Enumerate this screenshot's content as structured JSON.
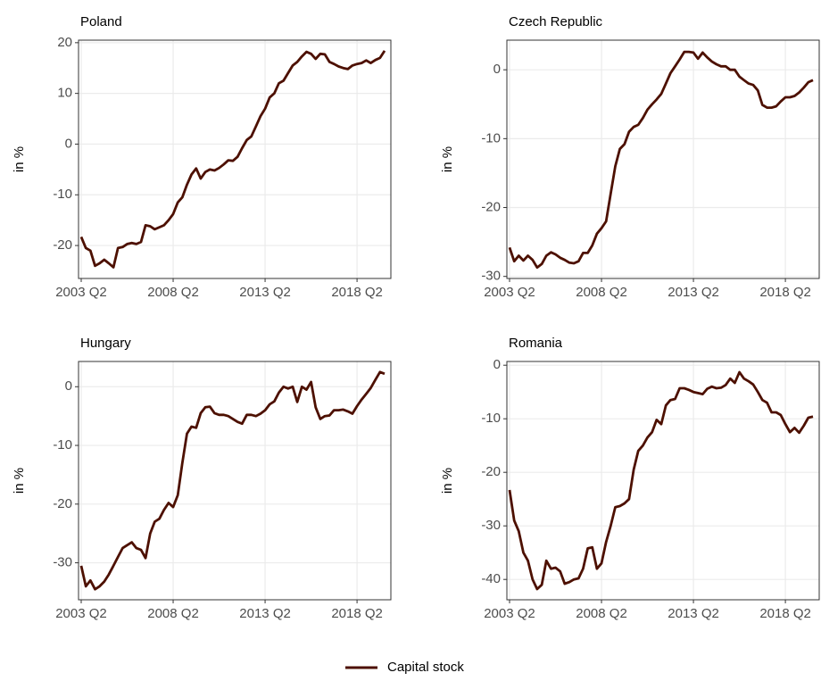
{
  "chart_data": [
    {
      "type": "line",
      "title": "Poland",
      "y_label": "in %",
      "color": "#4d1000",
      "categories": [
        "2003 Q2",
        null,
        null,
        null,
        null,
        null,
        null,
        null,
        null,
        null,
        null,
        null,
        null,
        null,
        null,
        null,
        null,
        null,
        null,
        null,
        "2008 Q2",
        null,
        null,
        null,
        null,
        null,
        null,
        null,
        null,
        null,
        null,
        null,
        null,
        null,
        null,
        null,
        null,
        null,
        null,
        null,
        "2013 Q2",
        null,
        null,
        null,
        null,
        null,
        null,
        null,
        null,
        null,
        null,
        null,
        null,
        null,
        null,
        null,
        null,
        null,
        null,
        null,
        "2018 Q2",
        null,
        null,
        null,
        null,
        null,
        null
      ],
      "values": [
        -18.3,
        -20.5,
        -21,
        -24,
        -23.5,
        -22.8,
        -23.5,
        -24.3,
        -20.5,
        -20.3,
        -19.7,
        -19.5,
        -19.7,
        -19.3,
        -16,
        -16.2,
        -16.8,
        -16.4,
        -16,
        -15,
        -13.8,
        -11.5,
        -10.5,
        -8,
        -6,
        -4.8,
        -6.8,
        -5.5,
        -5,
        -5.2,
        -4.7,
        -4,
        -3.2,
        -3.3,
        -2.5,
        -0.8,
        0.8,
        1.5,
        3.5,
        5.5,
        7,
        9.2,
        10,
        12,
        12.5,
        14,
        15.5,
        16.2,
        17.3,
        18.2,
        17.8,
        16.8,
        17.8,
        17.7,
        16.2,
        15.8,
        15.3,
        15,
        14.8,
        15.5,
        15.8,
        16,
        16.5,
        16,
        16.6,
        17,
        18.4
      ],
      "ylim": [
        -26.5,
        20.5
      ],
      "yticks": [
        -20,
        -10,
        0,
        10,
        20
      ],
      "grid": true
    },
    {
      "type": "line",
      "title": "Czech Republic",
      "y_label": "in %",
      "color": "#4d1000",
      "categories": [
        "2003 Q2",
        null,
        null,
        null,
        null,
        null,
        null,
        null,
        null,
        null,
        null,
        null,
        null,
        null,
        null,
        null,
        null,
        null,
        null,
        null,
        "2008 Q2",
        null,
        null,
        null,
        null,
        null,
        null,
        null,
        null,
        null,
        null,
        null,
        null,
        null,
        null,
        null,
        null,
        null,
        null,
        null,
        "2013 Q2",
        null,
        null,
        null,
        null,
        null,
        null,
        null,
        null,
        null,
        null,
        null,
        null,
        null,
        null,
        null,
        null,
        null,
        null,
        null,
        "2018 Q2",
        null,
        null,
        null,
        null,
        null,
        null
      ],
      "values": [
        -25.8,
        -27.8,
        -27,
        -27.7,
        -27,
        -27.6,
        -28.7,
        -28.2,
        -27,
        -26.5,
        -26.8,
        -27.3,
        -27.6,
        -28,
        -28.1,
        -27.8,
        -26.6,
        -26.6,
        -25.5,
        -23.8,
        -23,
        -22,
        -18,
        -14,
        -11.5,
        -10.8,
        -9,
        -8.3,
        -8,
        -7,
        -5.8,
        -5,
        -4.3,
        -3.5,
        -2,
        -0.5,
        0.5,
        1.5,
        2.6,
        2.6,
        2.5,
        1.6,
        2.5,
        1.8,
        1.2,
        0.8,
        0.5,
        0.5,
        0,
        0,
        -1,
        -1.5,
        -2,
        -2.2,
        -3,
        -5.1,
        -5.5,
        -5.5,
        -5.3,
        -4.6,
        -4,
        -4,
        -3.8,
        -3.3,
        -2.6,
        -1.8,
        -1.5
      ],
      "ylim": [
        -30.3,
        4.3
      ],
      "yticks": [
        -30,
        -20,
        -10,
        0
      ],
      "grid": true
    },
    {
      "type": "line",
      "title": "Hungary",
      "y_label": "in %",
      "color": "#4d1000",
      "categories": [
        "2003 Q2",
        null,
        null,
        null,
        null,
        null,
        null,
        null,
        null,
        null,
        null,
        null,
        null,
        null,
        null,
        null,
        null,
        null,
        null,
        null,
        "2008 Q2",
        null,
        null,
        null,
        null,
        null,
        null,
        null,
        null,
        null,
        null,
        null,
        null,
        null,
        null,
        null,
        null,
        null,
        null,
        null,
        "2013 Q2",
        null,
        null,
        null,
        null,
        null,
        null,
        null,
        null,
        null,
        null,
        null,
        null,
        null,
        null,
        null,
        null,
        null,
        null,
        null,
        "2018 Q2",
        null,
        null,
        null,
        null,
        null,
        null
      ],
      "values": [
        -30.5,
        -34,
        -33,
        -34.5,
        -34,
        -33.2,
        -32,
        -30.5,
        -29,
        -27.5,
        -27,
        -26.5,
        -27.5,
        -27.8,
        -29.2,
        -25,
        -23,
        -22.5,
        -21,
        -19.8,
        -20.5,
        -18.5,
        -13,
        -8,
        -6.8,
        -7,
        -4.5,
        -3.5,
        -3.4,
        -4.5,
        -4.8,
        -4.8,
        -5,
        -5.5,
        -6,
        -6.3,
        -4.8,
        -4.8,
        -5,
        -4.6,
        -4,
        -3,
        -2.5,
        -1,
        0,
        -0.3,
        0,
        -2.6,
        0,
        -0.5,
        0.8,
        -3.5,
        -5.5,
        -5,
        -4.9,
        -4,
        -4,
        -3.9,
        -4.2,
        -4.6,
        -3.3,
        -2.2,
        -1.2,
        -0.2,
        1.2,
        2.5,
        2.2
      ],
      "ylim": [
        -36.3,
        4.3
      ],
      "yticks": [
        -30,
        -20,
        -10,
        0
      ],
      "grid": true
    },
    {
      "type": "line",
      "title": "Romania",
      "y_label": "in %",
      "color": "#4d1000",
      "categories": [
        "2003 Q2",
        null,
        null,
        null,
        null,
        null,
        null,
        null,
        null,
        null,
        null,
        null,
        null,
        null,
        null,
        null,
        null,
        null,
        null,
        null,
        "2008 Q2",
        null,
        null,
        null,
        null,
        null,
        null,
        null,
        null,
        null,
        null,
        null,
        null,
        null,
        null,
        null,
        null,
        null,
        null,
        null,
        "2013 Q2",
        null,
        null,
        null,
        null,
        null,
        null,
        null,
        null,
        null,
        null,
        null,
        null,
        null,
        null,
        null,
        null,
        null,
        null,
        null,
        "2018 Q2",
        null,
        null,
        null,
        null,
        null,
        null
      ],
      "values": [
        -23.3,
        -29,
        -31,
        -35,
        -36.5,
        -40,
        -41.8,
        -41,
        -36.5,
        -38,
        -37.8,
        -38.5,
        -40.8,
        -40.5,
        -40,
        -39.8,
        -38,
        -34.2,
        -34,
        -38,
        -37,
        -33,
        -30,
        -26.5,
        -26.3,
        -25.8,
        -25,
        -19.5,
        -16,
        -15,
        -13.5,
        -12.5,
        -10.2,
        -11,
        -7.5,
        -6.5,
        -6.3,
        -4.3,
        -4.3,
        -4.6,
        -5,
        -5.2,
        -5.4,
        -4.4,
        -4,
        -4.3,
        -4.2,
        -3.7,
        -2.5,
        -3.3,
        -1.3,
        -2.5,
        -3,
        -3.6,
        -5,
        -6.5,
        -7,
        -8.8,
        -8.8,
        -9.3,
        -11,
        -12.5,
        -11.7,
        -12.6,
        -11.3,
        -9.8,
        -9.6
      ],
      "ylim": [
        -43.8,
        0.7
      ],
      "yticks": [
        -40,
        -30,
        -20,
        -10,
        0
      ],
      "grid": true
    }
  ],
  "legend": {
    "name": "Capital stock",
    "color": "#4d1000"
  }
}
